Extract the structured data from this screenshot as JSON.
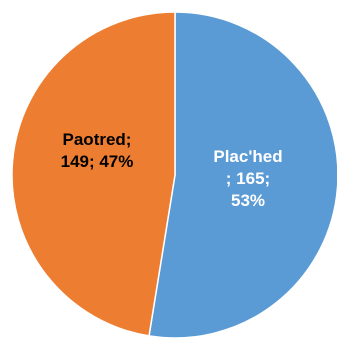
{
  "chart_data": {
    "type": "pie",
    "slices": [
      {
        "name": "Plac'hed",
        "value": 165,
        "percent": "53%",
        "color": "#5b9bd5",
        "label_color": "#ffffff",
        "label_lines": [
          "Plac'hed",
          "; 165;",
          "53%"
        ]
      },
      {
        "name": "Paotred",
        "value": 149,
        "percent": "47%",
        "color": "#ed7d31",
        "label_color": "#000000",
        "label_lines": [
          "Paotred;",
          "149; 47%"
        ]
      }
    ],
    "start_angle_deg": 0,
    "direction": "clockwise",
    "border_color": "#ffffff"
  }
}
